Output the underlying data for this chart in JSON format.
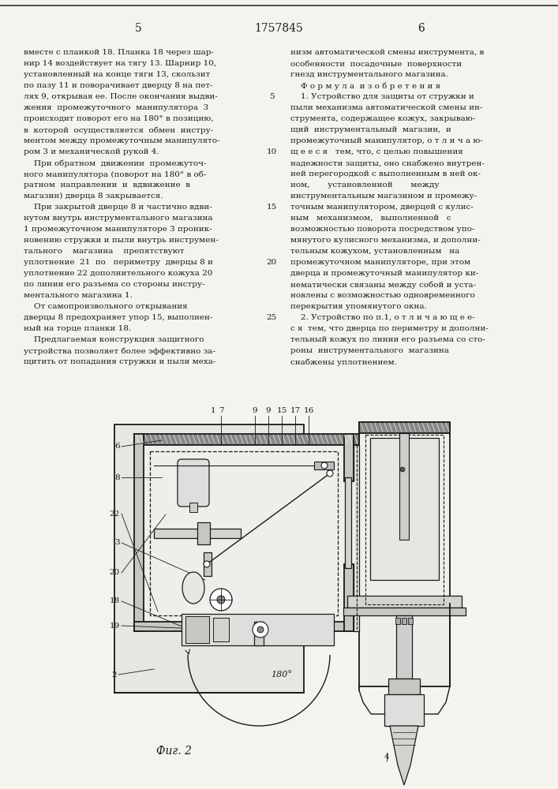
{
  "page_number_left": "5",
  "page_number_center": "1757845",
  "page_number_right": "6",
  "left_column_text_lines": [
    "вместе с планкой 18. Планка 18 через шар-",
    "нир 14 воздействует на тягу 13. Шарнир 10,",
    "установленный на конце тяги 13, скользит",
    "по пазу 11 и поворачивает дверцу 8 на пет-",
    "лях 9, открывая ее. После окончания выдви-",
    "жения  промежуточного  манипулятора  3",
    "происходит поворот его на 180° в позицию,",
    "в  которой  осуществляется  обмен  инстру-",
    "ментом между промежуточным манипулято-",
    "ром 3 и механической рукой 4.",
    "    При обратном  движении  промежуточ-",
    "ного манипулятора (поворот на 180° в об-",
    "ратном  направлении  и  вдвижение  в",
    "магазин) дверца 8 закрывается.",
    "    При закрытой дверце 8 и частично вдви-",
    "нутом внутрь инструментального магазина",
    "1 промежуточном манипуляторе 3 проник-",
    "новению стружки и пыли внутрь инструмен-",
    "тального    магазина    препятствуют",
    "уплотнение  21  по   периметру  дверцы 8 и",
    "уплотнение 22 дополнительного кожуха 20",
    "по линии его разъема со стороны инстру-",
    "ментального магазина 1.",
    "    От самопроизвольного открывания",
    "дверцы 8 предохраняет упор 15, выполнен-",
    "ный на торце планки 18.",
    "    Предлагаемая конструкция защитного",
    "устройства позволяет более эффективно за-",
    "щитить от попадания стружки и пыли меха-"
  ],
  "right_column_text_lines": [
    "низм автоматической смены инструмента, в",
    "особенности  посадочные  поверхности",
    "гнезд инструментального магазина.",
    "    Ф о р м у л а  и з о б р е т е н и я",
    "    1. Устройство для защиты от стружки и",
    "пыли механизма автоматической смены ин-",
    "струмента, содержащее кожух, закрываю-",
    "щий  инструментальный  магазин,  и",
    "промежуточный манипулятор, о т л и ч а ю-",
    "щ е е с я   тем, что, с целью повышения",
    "надежности защиты, оно снабжено внутрен-",
    "ней перегородкой с выполненным в ней ок-",
    "ном,       установленной       между",
    "инструментальным магазином и промежу-",
    "точным манипулятором, дверцей с кулис-",
    "ным   механизмом,   выполненной   с",
    "возможностью поворота посредством упо-",
    "мянутого кулисного механизма, и дополни-",
    "тельным кожухом, установленным   на",
    "промежуточном манипуляторе, при этом",
    "дверца и промежуточный манипулятор ки-",
    "нематически связаны между собой и уста-",
    "новлены с возможностью одновременного",
    "перекрытия упомянутого окна.",
    "    2. Устройство по п.1, о т л и ч а ю щ е е-",
    "с я  тем, что дверца по периметру и дополни-",
    "тельный кожух по линии его разъема со сто-",
    "роны  инструментального  магазина",
    "снабжены уплотнением."
  ],
  "line_number_rows": [
    4,
    9,
    14,
    19,
    24
  ],
  "line_numbers": [
    "5",
    "10",
    "15",
    "20",
    "25"
  ],
  "fig_label": "Фиг. 2",
  "bg_color": "#f5f3ee",
  "text_color": "#1a1a1a"
}
